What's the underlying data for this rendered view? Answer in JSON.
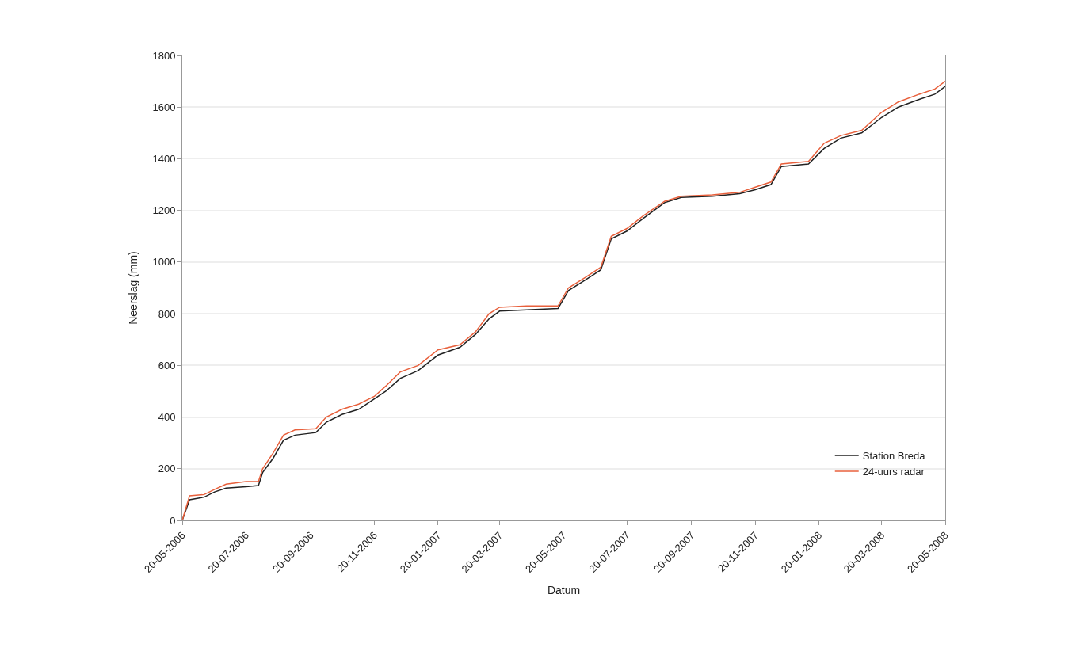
{
  "chart_data": {
    "type": "line",
    "xlabel": "Datum",
    "ylabel": "Neerslag (mm)",
    "x": [
      "2006-05-20",
      "2006-05-27",
      "2006-06-10",
      "2006-06-20",
      "2006-07-01",
      "2006-07-20",
      "2006-08-01",
      "2006-08-05",
      "2006-08-15",
      "2006-08-25",
      "2006-09-05",
      "2006-09-25",
      "2006-10-05",
      "2006-10-20",
      "2006-11-05",
      "2006-11-20",
      "2006-12-01",
      "2006-12-15",
      "2007-01-01",
      "2007-01-20",
      "2007-02-10",
      "2007-02-25",
      "2007-03-10",
      "2007-03-20",
      "2007-04-15",
      "2007-05-15",
      "2007-05-25",
      "2007-06-10",
      "2007-06-25",
      "2007-07-05",
      "2007-07-20",
      "2007-08-05",
      "2007-08-25",
      "2007-09-10",
      "2007-10-10",
      "2007-11-05",
      "2007-11-20",
      "2007-12-05",
      "2007-12-15",
      "2008-01-10",
      "2008-01-25",
      "2008-02-10",
      "2008-03-01",
      "2008-03-20",
      "2008-04-05",
      "2008-04-25",
      "2008-05-10",
      "2008-05-20"
    ],
    "series": [
      {
        "name": "Station Breda",
        "color": "#222222",
        "values": [
          0,
          80,
          90,
          110,
          125,
          130,
          135,
          185,
          240,
          310,
          330,
          340,
          380,
          410,
          430,
          470,
          500,
          550,
          580,
          640,
          670,
          720,
          780,
          810,
          815,
          820,
          890,
          930,
          970,
          1090,
          1120,
          1170,
          1230,
          1250,
          1255,
          1265,
          1280,
          1300,
          1370,
          1380,
          1440,
          1480,
          1500,
          1560,
          1600,
          1630,
          1650,
          1680
        ]
      },
      {
        "name": "24-uurs radar",
        "color": "#e8603c",
        "values": [
          0,
          95,
          100,
          120,
          140,
          150,
          150,
          200,
          260,
          330,
          350,
          355,
          400,
          430,
          450,
          480,
          520,
          575,
          600,
          660,
          680,
          730,
          800,
          825,
          830,
          830,
          900,
          940,
          980,
          1100,
          1130,
          1180,
          1235,
          1255,
          1260,
          1270,
          1290,
          1310,
          1380,
          1390,
          1460,
          1490,
          1510,
          1580,
          1620,
          1650,
          1670,
          1700
        ]
      }
    ],
    "xlim": [
      "2006-05-20",
      "2008-05-20"
    ],
    "xticks": [
      {
        "value": "2006-05-20",
        "label": "20-05-2006"
      },
      {
        "value": "2006-07-20",
        "label": "20-07-2006"
      },
      {
        "value": "2006-09-20",
        "label": "20-09-2006"
      },
      {
        "value": "2006-11-20",
        "label": "20-11-2006"
      },
      {
        "value": "2007-01-20",
        "label": "20-01-2007"
      },
      {
        "value": "2007-03-20",
        "label": "20-03-2007"
      },
      {
        "value": "2007-05-20",
        "label": "20-05-2007"
      },
      {
        "value": "2007-07-20",
        "label": "20-07-2007"
      },
      {
        "value": "2007-09-20",
        "label": "20-09-2007"
      },
      {
        "value": "2007-11-20",
        "label": "20-11-2007"
      },
      {
        "value": "2008-01-20",
        "label": "20-01-2008"
      },
      {
        "value": "2008-03-20",
        "label": "20-03-2008"
      },
      {
        "value": "2008-05-20",
        "label": "20-05-2008"
      }
    ],
    "ylim": [
      0,
      1800
    ],
    "yticks": [
      0,
      200,
      400,
      600,
      800,
      1000,
      1200,
      1400,
      1600,
      1800
    ],
    "grid": "y",
    "legend": "bottom right",
    "marker": "none",
    "line_style": "solid"
  }
}
